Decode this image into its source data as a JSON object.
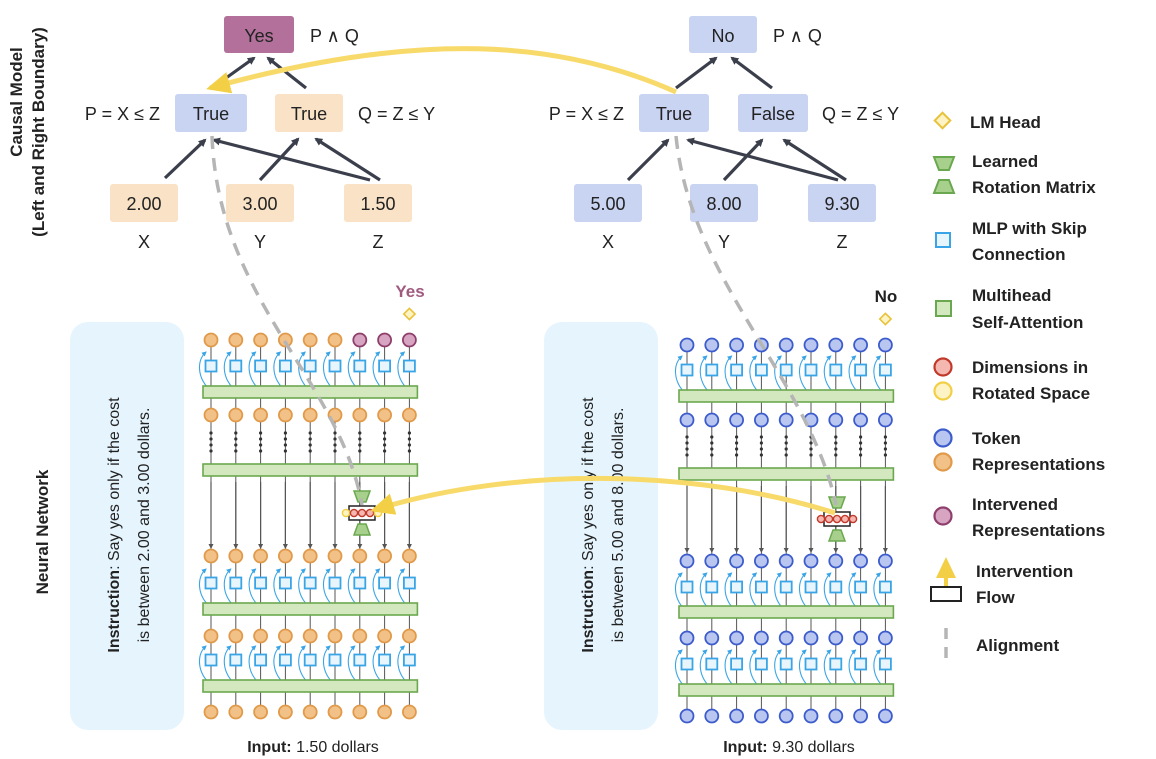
{
  "side_labels": {
    "causal_model_line1": "Causal Model",
    "causal_model_line2": "(Left and Right Boundary)",
    "neural_network": "Neural Network"
  },
  "left_example": {
    "root": {
      "value": "Yes",
      "formula": "P ∧ Q"
    },
    "p_node": {
      "value": "True",
      "formula": "P = X ≤ Z"
    },
    "q_node": {
      "value": "True",
      "formula": "Q = Z ≤ Y"
    },
    "inputs": [
      {
        "value": "2.00",
        "label": "X"
      },
      {
        "value": "3.00",
        "label": "Y"
      },
      {
        "value": "1.50",
        "label": "Z"
      }
    ],
    "output_token": "Yes",
    "instruction_bold": "Instruction",
    "instruction_line1": ": Say yes only if the cost",
    "instruction_line2": "is between 2.00 and 3.00 dollars.",
    "input_bold": "Input:",
    "input_text": " 1.50 dollars"
  },
  "right_example": {
    "root": {
      "value": "No",
      "formula": "P ∧ Q"
    },
    "p_node": {
      "value": "True",
      "formula": "P = X ≤ Z"
    },
    "q_node": {
      "value": "False",
      "formula": "Q = Z ≤ Y"
    },
    "inputs": [
      {
        "value": "5.00",
        "label": "X"
      },
      {
        "value": "8.00",
        "label": "Y"
      },
      {
        "value": "9.30",
        "label": "Z"
      }
    ],
    "output_token": "No",
    "instruction_bold": "Instruction",
    "instruction_line1": ": Say yes only if the cost",
    "instruction_line2": "is between 5.00 and 8.00 dollars.",
    "input_bold": "Input:",
    "input_text": " 9.30 dollars"
  },
  "legend": {
    "lm_head": "LM Head",
    "rotation_line1": "Learned",
    "rotation_line2": "Rotation Matrix",
    "mlp_line1": "MLP with Skip",
    "mlp_line2": "Connection",
    "attn_line1": "Multihead",
    "attn_line2": "Self-Attention",
    "dims_line1": "Dimensions in",
    "dims_line2": "Rotated Space",
    "token_line1": "Token",
    "token_line2": "Representations",
    "intervened_line1": "Intervened",
    "intervened_line2": "Representations",
    "flow_line1": "Intervention",
    "flow_line2": "Flow",
    "alignment": "Alignment"
  },
  "colors": {
    "true_node": "#c9d3f2",
    "input_left": "#f9e2c6",
    "input_right": "#c9d3f2",
    "yes_node": "#b3709a",
    "intervened_text": "#a05a7f",
    "orange_token": "#f2c188",
    "blue_token": "#b9c6f0",
    "purple_token": "#d7a5c2",
    "mlp_border": "#3aa5e6",
    "attention": "#d4e8bf",
    "intervention_flow": "#f7da6a",
    "alignment": "#b5b5b5",
    "instruction_box": "#e6f5fd"
  }
}
